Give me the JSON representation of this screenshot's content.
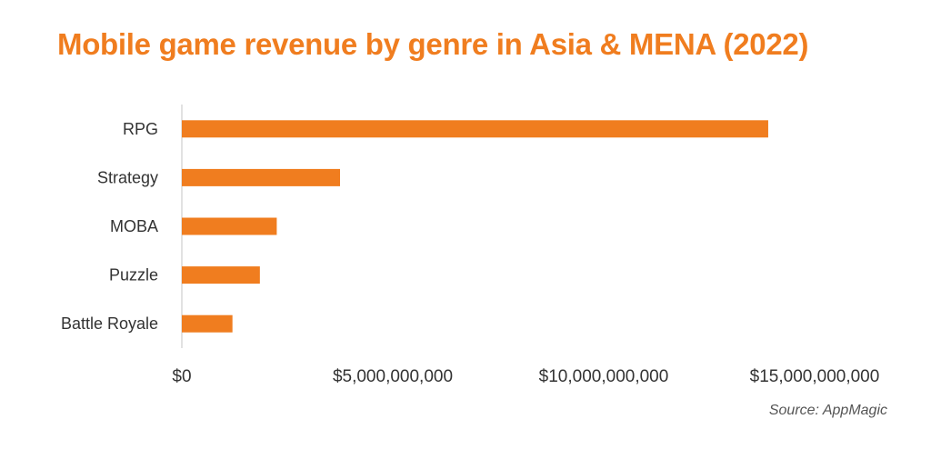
{
  "title": "Mobile game revenue by genre in Asia & MENA (2022)",
  "source": "Source: AppMagic",
  "colors": {
    "bar": "#f07d1f",
    "title": "#f07d1f",
    "axis": "#d9d9d9",
    "text": "#333333"
  },
  "chart_data": {
    "type": "bar",
    "orientation": "horizontal",
    "title": "Mobile game revenue by genre in Asia & MENA (2022)",
    "categories": [
      "RPG",
      "Strategy",
      "MOBA",
      "Puzzle",
      "Battle Royale"
    ],
    "values": [
      13900000000,
      3750000000,
      2250000000,
      1850000000,
      1200000000
    ],
    "xlim": [
      0,
      15000000000
    ],
    "x_ticks": [
      0,
      5000000000,
      10000000000,
      15000000000
    ],
    "x_tick_labels": [
      "$0",
      "$5,000,000,000",
      "$10,000,000,000",
      "$15,000,000,000"
    ],
    "xlabel": "",
    "ylabel": "",
    "grid": false,
    "legend": "none"
  }
}
